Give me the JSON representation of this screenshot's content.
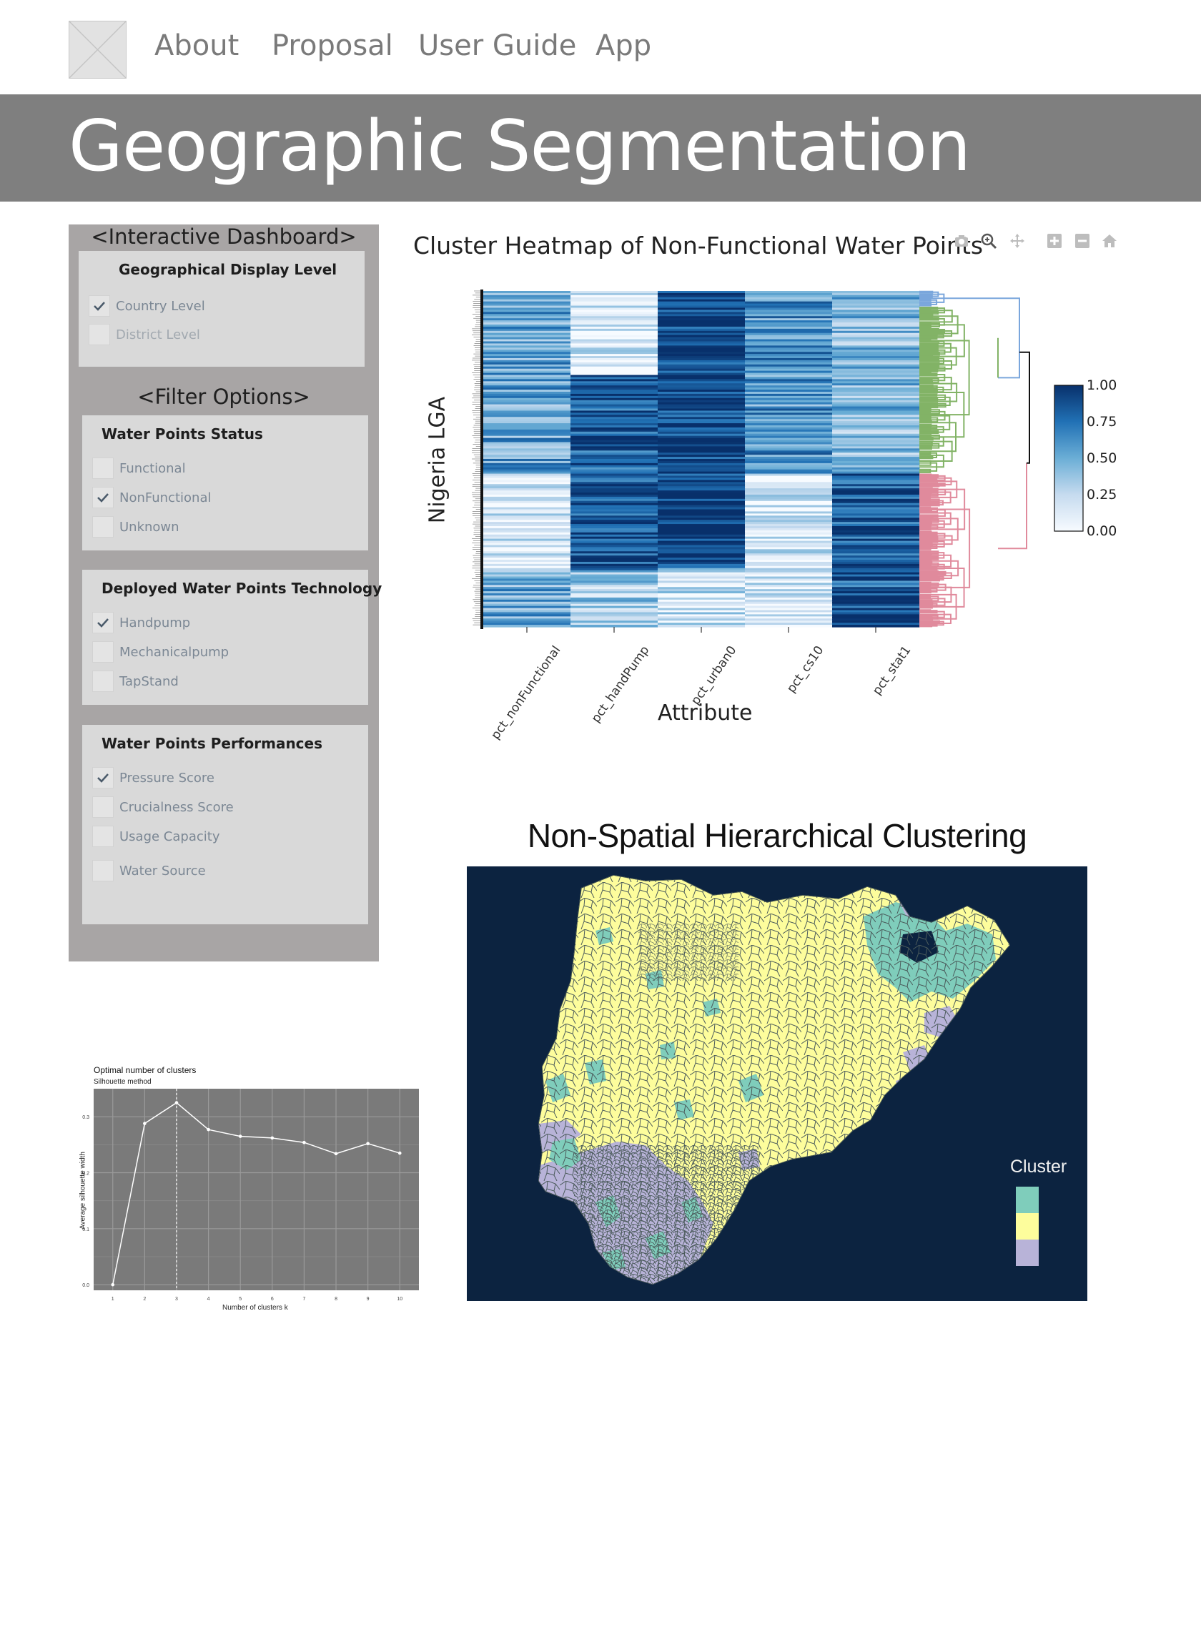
{
  "nav": {
    "links": [
      "About",
      "Proposal",
      "User Guide",
      "App"
    ]
  },
  "banner": {
    "title": "Geographic Segmentation"
  },
  "sidebar": {
    "dashboard_title": "<Interactive Dashboard>",
    "filter_title": "<Filter Options>",
    "panels": [
      {
        "title": "Geographical Display Level",
        "options": [
          {
            "label": "Country Level",
            "checked": true
          },
          {
            "label": "District Level",
            "checked": false
          }
        ]
      },
      {
        "title": "Water Points Status",
        "options": [
          {
            "label": "Functional",
            "checked": false
          },
          {
            "label": "NonFunctional",
            "checked": true
          },
          {
            "label": "Unknown",
            "checked": false
          }
        ]
      },
      {
        "title": "Deployed Water Points Technology",
        "options": [
          {
            "label": "Handpump",
            "checked": true
          },
          {
            "label": "Mechanicalpump",
            "checked": false
          },
          {
            "label": "TapStand",
            "checked": false
          }
        ]
      },
      {
        "title": "Water Points Performances",
        "options": [
          {
            "label": "Pressure Score",
            "checked": true
          },
          {
            "label": "Crucialness Score",
            "checked": false
          },
          {
            "label": "Usage Capacity",
            "checked": false
          },
          {
            "label": "Water Source",
            "checked": false
          }
        ]
      }
    ]
  },
  "heatmap": {
    "title": "Cluster Heatmap of Non-Functional Water Points",
    "ylabel": "Nigeria LGA",
    "xlabel": "Attribute",
    "columns": [
      "pct_nonFunctional",
      "pct_handPump",
      "pct_urban0",
      "pct_cs10",
      "pct_stat1"
    ],
    "colorbar_ticks": [
      "1.00",
      "0.75",
      "0.50",
      "0.25",
      "0.00"
    ],
    "toolbar_icons": [
      "camera-icon",
      "zoom-icon",
      "pan-icon",
      "zoom-in-icon",
      "zoom-out-icon",
      "home-icon"
    ],
    "colors": {
      "low": "#f7fbff",
      "high": "#08306b",
      "dendro_blue": "#7aa6dc",
      "dendro_green": "#82b366",
      "dendro_pink": "#e08a9c"
    }
  },
  "silhouette": {
    "title": "Optimal number of clusters",
    "subtitle": "Silhouette method",
    "ylabel": "Average silhouette width",
    "xlabel": "Number of clusters k"
  },
  "map": {
    "title": "Non-Spatial Hierarchical Clustering",
    "legend_title": "Cluster",
    "legend_colors": [
      "#7fcdbb",
      "#fdfd9c",
      "#b8b3d8"
    ]
  },
  "chart_data": [
    {
      "type": "line",
      "title": "Optimal number of clusters",
      "subtitle": "Silhouette method",
      "xlabel": "Number of clusters k",
      "ylabel": "Average silhouette width",
      "x": [
        1,
        2,
        3,
        4,
        5,
        6,
        7,
        8,
        9,
        10
      ],
      "y": [
        0.0,
        0.288,
        0.325,
        0.277,
        0.265,
        0.262,
        0.254,
        0.234,
        0.252,
        0.235
      ],
      "ylim": [
        -0.01,
        0.35
      ],
      "yticks": [
        "0.0",
        "0.1",
        "0.2",
        "0.3"
      ],
      "optimal_k": 3,
      "grid": true
    }
  ]
}
